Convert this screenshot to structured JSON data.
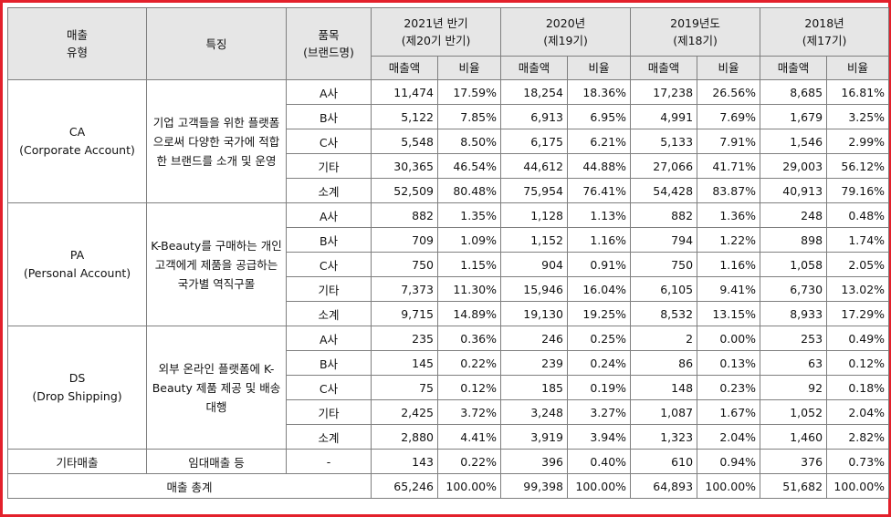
{
  "headers": {
    "type": [
      "매출",
      "유형"
    ],
    "feature": "특징",
    "item": [
      "품목",
      "(브랜드명)"
    ],
    "periods": [
      {
        "title": "2021년 반기",
        "sub": "(제20기 반기)"
      },
      {
        "title": "2020년",
        "sub": "(제19기)"
      },
      {
        "title": "2019년도",
        "sub": "(제18기)"
      },
      {
        "title": "2018년",
        "sub": "(제17기)"
      }
    ],
    "amount": "매출액",
    "ratio": "비율"
  },
  "groups": [
    {
      "name": "CA",
      "full": "(Corporate Account)",
      "feature": "기업 고객들을 위한 플랫폼으로써 다양한 국가에 적합한 브랜드를 소개 및 운영",
      "rows": [
        {
          "item": "A사",
          "values": [
            "11,474",
            "17.59%",
            "18,254",
            "18.36%",
            "17,238",
            "26.56%",
            "8,685",
            "16.81%"
          ]
        },
        {
          "item": "B사",
          "values": [
            "5,122",
            "7.85%",
            "6,913",
            "6.95%",
            "4,991",
            "7.69%",
            "1,679",
            "3.25%"
          ]
        },
        {
          "item": "C사",
          "values": [
            "5,548",
            "8.50%",
            "6,175",
            "6.21%",
            "5,133",
            "7.91%",
            "1,546",
            "2.99%"
          ]
        },
        {
          "item": "기타",
          "values": [
            "30,365",
            "46.54%",
            "44,612",
            "44.88%",
            "27,066",
            "41.71%",
            "29,003",
            "56.12%"
          ]
        },
        {
          "item": "소계",
          "values": [
            "52,509",
            "80.48%",
            "75,954",
            "76.41%",
            "54,428",
            "83.87%",
            "40,913",
            "79.16%"
          ]
        }
      ]
    },
    {
      "name": "PA",
      "full": "(Personal Account)",
      "feature": "K-Beauty를 구매하는 개인 고객에게 제품을 공급하는 국가별 역직구몰",
      "rows": [
        {
          "item": "A사",
          "values": [
            "882",
            "1.35%",
            "1,128",
            "1.13%",
            "882",
            "1.36%",
            "248",
            "0.48%"
          ]
        },
        {
          "item": "B사",
          "values": [
            "709",
            "1.09%",
            "1,152",
            "1.16%",
            "794",
            "1.22%",
            "898",
            "1.74%"
          ]
        },
        {
          "item": "C사",
          "values": [
            "750",
            "1.15%",
            "904",
            "0.91%",
            "750",
            "1.16%",
            "1,058",
            "2.05%"
          ]
        },
        {
          "item": "기타",
          "values": [
            "7,373",
            "11.30%",
            "15,946",
            "16.04%",
            "6,105",
            "9.41%",
            "6,730",
            "13.02%"
          ]
        },
        {
          "item": "소계",
          "values": [
            "9,715",
            "14.89%",
            "19,130",
            "19.25%",
            "8,532",
            "13.15%",
            "8,933",
            "17.29%"
          ]
        }
      ]
    },
    {
      "name": "DS",
      "full": "(Drop Shipping)",
      "feature": "외부 온라인 플랫폼에 K-Beauty 제품 제공 및 배송 대행",
      "rows": [
        {
          "item": "A사",
          "values": [
            "235",
            "0.36%",
            "246",
            "0.25%",
            "2",
            "0.00%",
            "253",
            "0.49%"
          ]
        },
        {
          "item": "B사",
          "values": [
            "145",
            "0.22%",
            "239",
            "0.24%",
            "86",
            "0.13%",
            "63",
            "0.12%"
          ]
        },
        {
          "item": "C사",
          "values": [
            "75",
            "0.12%",
            "185",
            "0.19%",
            "148",
            "0.23%",
            "92",
            "0.18%"
          ]
        },
        {
          "item": "기타",
          "values": [
            "2,425",
            "3.72%",
            "3,248",
            "3.27%",
            "1,087",
            "1.67%",
            "1,052",
            "2.04%"
          ]
        },
        {
          "item": "소계",
          "values": [
            "2,880",
            "4.41%",
            "3,919",
            "3.94%",
            "1,323",
            "2.04%",
            "1,460",
            "2.82%"
          ]
        }
      ]
    }
  ],
  "other": {
    "name": "기타매출",
    "feature": "임대매출 등",
    "item": "-",
    "values": [
      "143",
      "0.22%",
      "396",
      "0.40%",
      "610",
      "0.94%",
      "376",
      "0.73%"
    ]
  },
  "total": {
    "label": "매출 총계",
    "values": [
      "65,246",
      "100.00%",
      "99,398",
      "100.00%",
      "64,893",
      "100.00%",
      "51,682",
      "100.00%"
    ]
  }
}
